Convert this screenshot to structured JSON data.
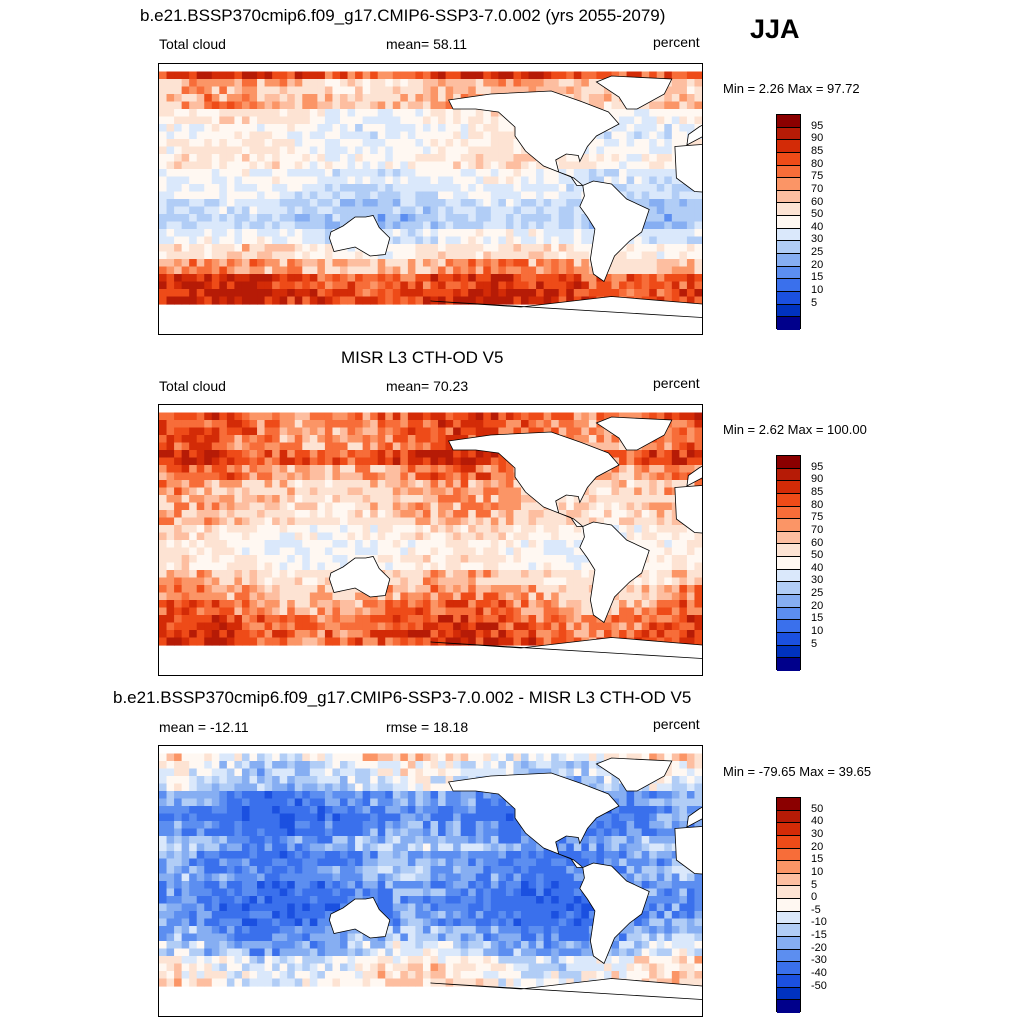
{
  "season": "JJA",
  "units": "percent",
  "chart_data": [
    {
      "type": "heatmap",
      "title": "b.e21.BSSP370cmip6.f09_g17.CMIP6-SSP3-7.0.002 (yrs 2055-2079)",
      "left_label": "Total cloud",
      "center_label": "mean=  58.11",
      "right_label": "percent",
      "minmax": "Min =   2.26 Max =  97.72",
      "min": 2.26,
      "max": 97.72,
      "mean": 58.11,
      "colorbar_labels": [
        "95",
        "90",
        "85",
        "80",
        "75",
        "70",
        "60",
        "50",
        "40",
        "30",
        "25",
        "20",
        "15",
        "10",
        "5"
      ],
      "colorbar_colors": [
        "#8b0000",
        "#b61b06",
        "#d32b07",
        "#ee4b18",
        "#f76d39",
        "#fb9566",
        "#fdbea0",
        "#fde3d3",
        "#fff8f2",
        "#dae8fb",
        "#b1cdf6",
        "#86aef2",
        "#5c8ef0",
        "#3a70ec",
        "#1b50e0",
        "#0032bf",
        "#00008b"
      ],
      "lat_profile": [
        88,
        70,
        72,
        58,
        52,
        55,
        60,
        50,
        45,
        38,
        36,
        48,
        62,
        74,
        88,
        92,
        90,
        70
      ]
    },
    {
      "type": "heatmap",
      "title": "MISR L3 CTH-OD V5",
      "left_label": "Total cloud",
      "center_label": "mean=  70.23",
      "right_label": "percent",
      "minmax": "Min =   2.62 Max = 100.00",
      "min": 2.62,
      "max": 100.0,
      "mean": 70.23,
      "colorbar_labels": [
        "95",
        "90",
        "85",
        "80",
        "75",
        "70",
        "60",
        "50",
        "40",
        "30",
        "25",
        "20",
        "15",
        "10",
        "5"
      ],
      "colorbar_colors": [
        "#8b0000",
        "#b61b06",
        "#d32b07",
        "#ee4b18",
        "#f76d39",
        "#fb9566",
        "#fdbea0",
        "#fde3d3",
        "#fff8f2",
        "#dae8fb",
        "#b1cdf6",
        "#86aef2",
        "#5c8ef0",
        "#3a70ec",
        "#1b50e0",
        "#0032bf",
        "#00008b"
      ],
      "lat_profile": [
        85,
        82,
        80,
        88,
        78,
        72,
        70,
        68,
        60,
        55,
        58,
        68,
        75,
        80,
        85,
        88,
        85,
        80
      ]
    },
    {
      "type": "heatmap",
      "title": "b.e21.BSSP370cmip6.f09_g17.CMIP6-SSP3-7.0.002 - MISR L3 CTH-OD V5",
      "left_label": "mean = -12.11",
      "center_label": "rmse =  18.18",
      "right_label": "percent",
      "minmax": "Min = -79.65 Max =  39.65",
      "min": -79.65,
      "max": 39.65,
      "mean": -12.11,
      "rmse": 18.18,
      "colorbar_labels": [
        "50",
        "40",
        "30",
        "20",
        "15",
        "10",
        "5",
        "0",
        "-5",
        "-10",
        "-15",
        "-20",
        "-30",
        "-40",
        "-50"
      ],
      "colorbar_colors": [
        "#8b0000",
        "#b61b06",
        "#d32b07",
        "#ee4b18",
        "#f76d39",
        "#fb9566",
        "#fdbea0",
        "#fde3d3",
        "#fff8f2",
        "#dae8fb",
        "#b1cdf6",
        "#86aef2",
        "#5c8ef0",
        "#3a70ec",
        "#1b50e0",
        "#0032bf",
        "#00008b"
      ],
      "lat_profile": [
        5,
        -2,
        -5,
        -18,
        -22,
        -20,
        -12,
        -18,
        -15,
        -20,
        -22,
        -20,
        -14,
        -8,
        2,
        4,
        5,
        -8
      ]
    }
  ]
}
